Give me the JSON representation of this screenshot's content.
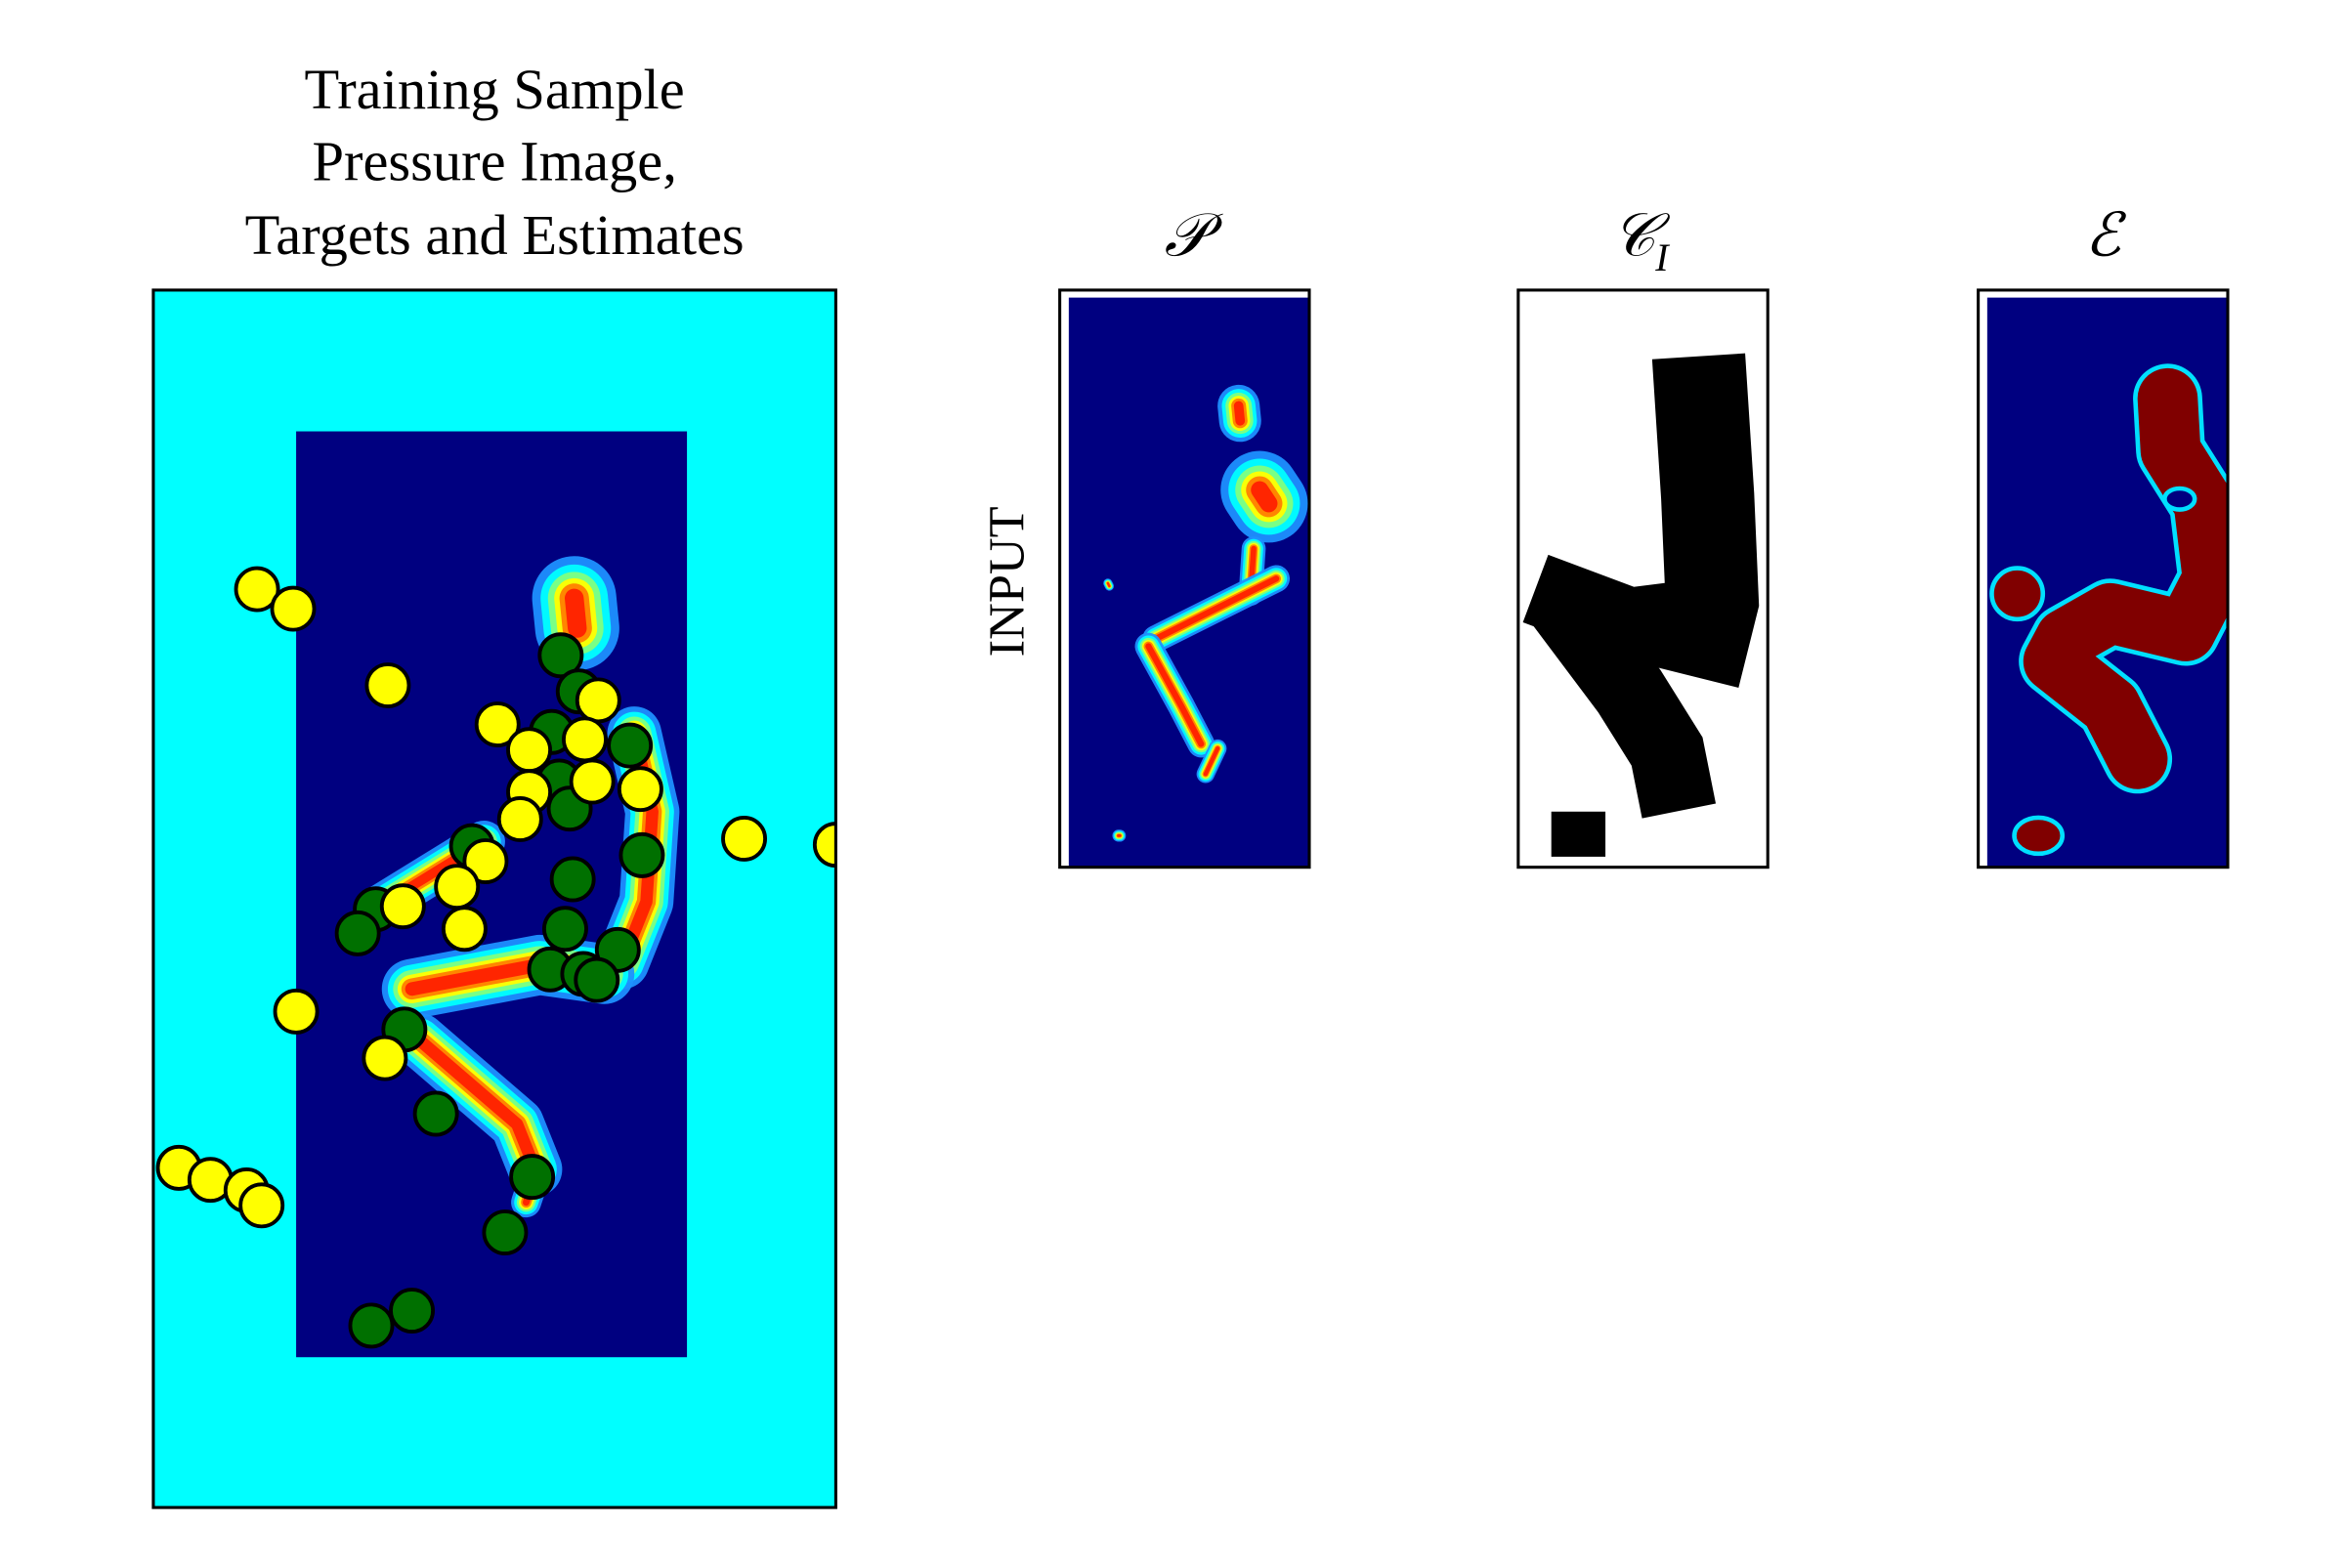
{
  "header": {
    "title_lines": [
      "Training Sample",
      "Pressure Image,",
      "Targets and Estimates"
    ]
  },
  "panels": [
    {
      "symbol": "𝒫"
    },
    {
      "symbol": "𝒞",
      "subscript": "I"
    },
    {
      "symbol": "ℰ"
    }
  ],
  "row_label": "INPUT"
}
